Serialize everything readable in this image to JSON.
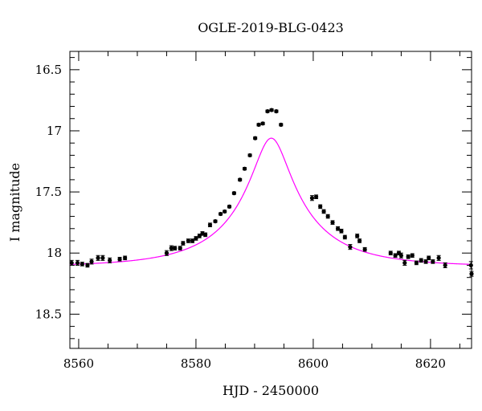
{
  "chart_data": {
    "type": "scatter",
    "title": "OGLE-2019-BLG-0423",
    "xlabel": "HJD - 2450000",
    "ylabel": "I magnitude",
    "xlim": [
      8558.5,
      8627
    ],
    "ylim": [
      18.78,
      16.35
    ],
    "y_inverted": true,
    "grid": false,
    "legend": "none",
    "colors": {
      "model": "#ff00ff",
      "points": "#000000"
    },
    "xticks": [
      8560,
      8580,
      8600,
      8620
    ],
    "xtick_labels": [
      "8560",
      "8580",
      "8600",
      "8620"
    ],
    "yticks": [
      16.5,
      17,
      17.5,
      18,
      18.5
    ],
    "ytick_labels": [
      "16.5",
      "17",
      "17.5",
      "18",
      "18.5"
    ],
    "series": [
      {
        "type": "scatter",
        "x": [
          8558.8,
          8559.8,
          8560.6,
          8561.5,
          8562.2,
          8563.3,
          8564.1,
          8565.3,
          8567.0,
          8567.9,
          8575.0,
          8575.8,
          8576.4,
          8577.3,
          8577.8,
          8578.7,
          8579.4,
          8580.0,
          8580.6,
          8581.1,
          8581.6,
          8582.4,
          8583.3,
          8584.2,
          8584.9,
          8585.7,
          8586.5,
          8587.5,
          8588.3,
          8589.2,
          8590.1,
          8590.7,
          8591.4,
          8592.2,
          8592.9,
          8593.7,
          8594.5,
          8599.8,
          8600.5,
          8601.2,
          8601.8,
          8602.5,
          8603.3,
          8604.2,
          8604.8,
          8605.4,
          8606.3,
          8607.5,
          8607.9,
          8608.8,
          8613.2,
          8614.0,
          8614.6,
          8615.0,
          8615.6,
          8616.2,
          8616.9,
          8617.6,
          8618.4,
          8619.2,
          8619.7,
          8620.4,
          8621.4,
          8622.5,
          8626.9,
          8627.0
        ],
        "y": [
          18.08,
          18.08,
          18.09,
          18.1,
          18.07,
          18.04,
          18.04,
          18.06,
          18.05,
          18.04,
          18.0,
          17.96,
          17.96,
          17.96,
          17.92,
          17.9,
          17.9,
          17.88,
          17.86,
          17.84,
          17.85,
          17.77,
          17.74,
          17.68,
          17.66,
          17.62,
          17.51,
          17.4,
          17.31,
          17.2,
          17.06,
          16.95,
          16.94,
          16.84,
          16.83,
          16.84,
          16.95,
          17.55,
          17.54,
          17.62,
          17.66,
          17.7,
          17.75,
          17.8,
          17.82,
          17.87,
          17.95,
          17.86,
          17.9,
          17.97,
          18.0,
          18.02,
          18.0,
          18.02,
          18.08,
          18.03,
          18.02,
          18.08,
          18.06,
          18.07,
          18.04,
          18.07,
          18.04,
          18.1,
          18.1,
          18.17
        ],
        "yerr": [
          0.02,
          0.02,
          0.015,
          0.015,
          0.02,
          0.02,
          0.02,
          0.02,
          0.015,
          0.015,
          0.02,
          0.02,
          0.015,
          0.015,
          0.015,
          0.015,
          0.015,
          0.015,
          0.015,
          0.015,
          0.015,
          0.015,
          0.01,
          0.01,
          0.01,
          0.01,
          0.01,
          0.01,
          0.01,
          0.01,
          0.01,
          0.01,
          0.01,
          0.01,
          0.01,
          0.01,
          0.01,
          0.02,
          0.015,
          0.015,
          0.015,
          0.015,
          0.015,
          0.015,
          0.015,
          0.015,
          0.02,
          0.015,
          0.015,
          0.015,
          0.015,
          0.015,
          0.015,
          0.02,
          0.02,
          0.015,
          0.015,
          0.015,
          0.015,
          0.015,
          0.015,
          0.015,
          0.02,
          0.02,
          0.03,
          0.02
        ]
      },
      {
        "type": "line",
        "model": "point-lens",
        "params": {
          "t0": 8592.85,
          "tE": 15.0,
          "u0": 0.2,
          "fs": 0.4,
          "Ibase": 18.11
        }
      }
    ]
  }
}
